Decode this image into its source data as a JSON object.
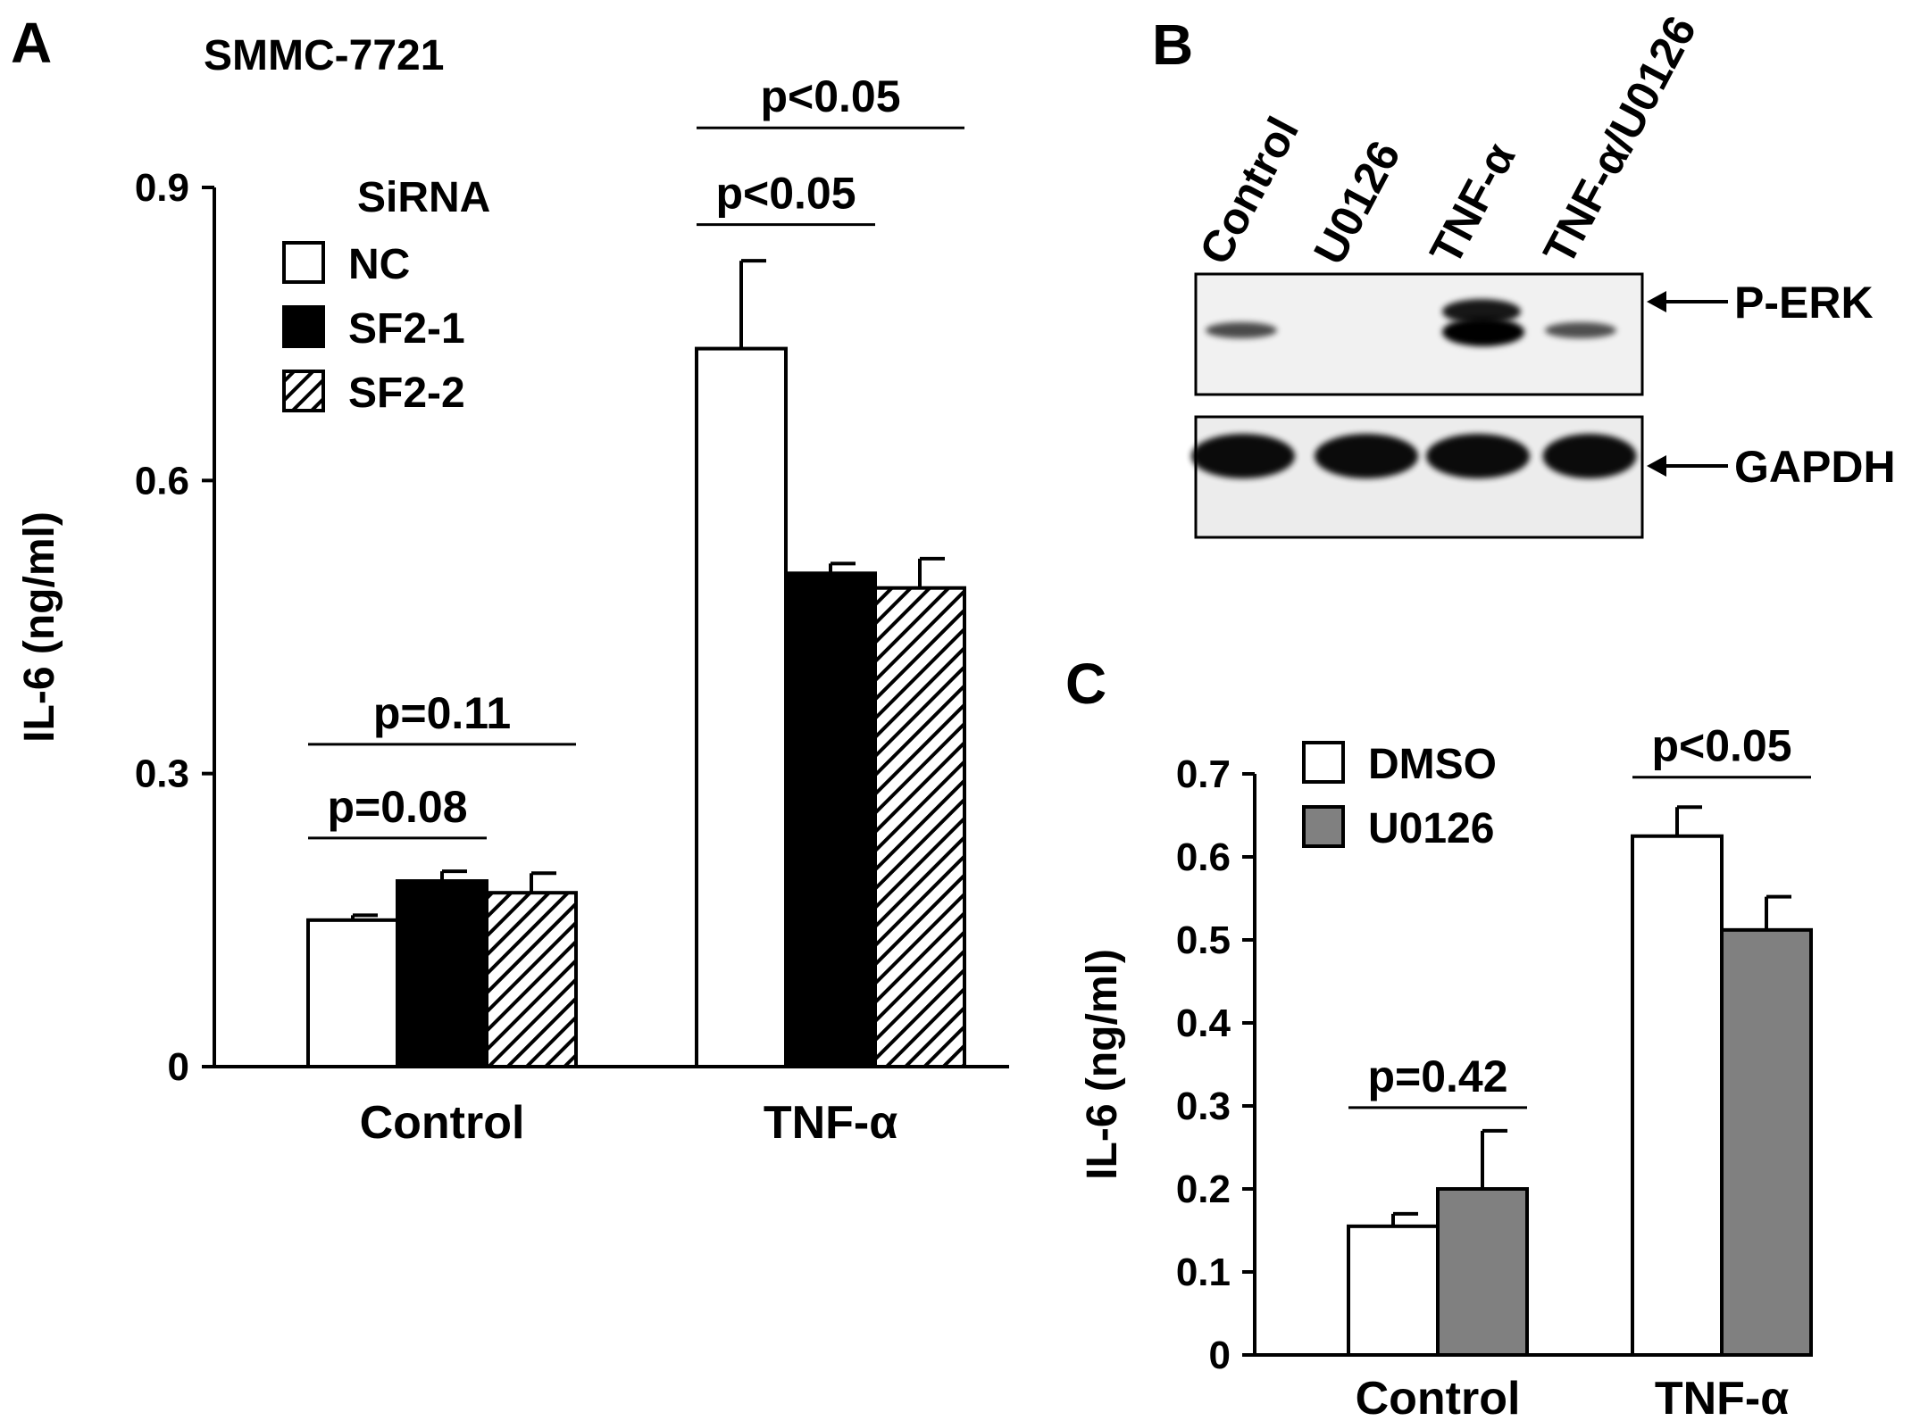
{
  "panels": {
    "A": {
      "letter": "A",
      "cell_line": "SMMC-7721",
      "legend_title": "SiRNA"
    },
    "B": {
      "letter": "B",
      "lanes": [
        "Control",
        "U0126",
        "TNF-α",
        "TNF-α/U0126"
      ],
      "bands": [
        "P-ERK",
        "GAPDH"
      ],
      "pERK_relative_intensity": [
        0.35,
        0.0,
        1.0,
        0.3
      ],
      "gapdh_relative_intensity": [
        1.0,
        1.0,
        1.0,
        0.9
      ]
    },
    "C": {
      "letter": "C"
    }
  },
  "chart_data": [
    {
      "type": "bar",
      "panel": "A",
      "title": "SMMC-7721",
      "ylabel": "IL-6 (ng/ml)",
      "xlabel": "",
      "ylim": [
        0,
        0.9
      ],
      "yticks": [
        0,
        0.3,
        0.6,
        0.9
      ],
      "ytick_labels": [
        "0",
        "0.3",
        "0.6",
        "0.9"
      ],
      "categories": [
        "Control",
        "TNF-α"
      ],
      "legend_title": "SiRNA",
      "legend_position": "top-left",
      "grid": false,
      "series": [
        {
          "name": "NC",
          "values": [
            0.15,
            0.735
          ],
          "errors": [
            0.005,
            0.09
          ],
          "fill": "#ffffff",
          "pattern": "none"
        },
        {
          "name": "SF2-1",
          "values": [
            0.19,
            0.505
          ],
          "errors": [
            0.01,
            0.01
          ],
          "fill": "#000000",
          "pattern": "none"
        },
        {
          "name": "SF2-2",
          "values": [
            0.178,
            0.49
          ],
          "errors": [
            0.02,
            0.03
          ],
          "fill": "#ffffff",
          "pattern": "diagonal-hatch"
        }
      ],
      "annotations": [
        {
          "text": "p=0.08",
          "category": 0,
          "from_series": 0,
          "to_series": 1,
          "y": 0.234
        },
        {
          "text": "p=0.11",
          "category": 0,
          "from_series": 0,
          "to_series": 2,
          "y": 0.33
        },
        {
          "text": "p<0.05",
          "category": 1,
          "from_series": 0,
          "to_series": 1,
          "y": 0.862
        },
        {
          "text": "p<0.05",
          "category": 1,
          "from_series": 0,
          "to_series": 2,
          "y": 0.961
        }
      ]
    },
    {
      "type": "bar",
      "panel": "C",
      "ylabel": "IL-6 (ng/ml)",
      "xlabel": "",
      "ylim": [
        0,
        0.7
      ],
      "yticks": [
        0,
        0.1,
        0.2,
        0.3,
        0.4,
        0.5,
        0.6,
        0.7
      ],
      "ytick_labels": [
        "0",
        "0.1",
        "0.2",
        "0.3",
        "0.4",
        "0.5",
        "0.6",
        "0.7"
      ],
      "categories": [
        "Control",
        "TNF-α"
      ],
      "legend_position": "top-left",
      "grid": false,
      "series": [
        {
          "name": "DMSO",
          "values": [
            0.155,
            0.625
          ],
          "errors": [
            0.015,
            0.035
          ],
          "fill": "#ffffff"
        },
        {
          "name": "U0126",
          "values": [
            0.2,
            0.512
          ],
          "errors": [
            0.07,
            0.04
          ],
          "fill": "#808080"
        }
      ],
      "annotations": [
        {
          "text": "p=0.42",
          "category": 0,
          "from_series": 0,
          "to_series": 1,
          "y": 0.298
        },
        {
          "text": "p<0.05",
          "category": 1,
          "from_series": 0,
          "to_series": 1,
          "y": 0.696
        }
      ]
    }
  ]
}
